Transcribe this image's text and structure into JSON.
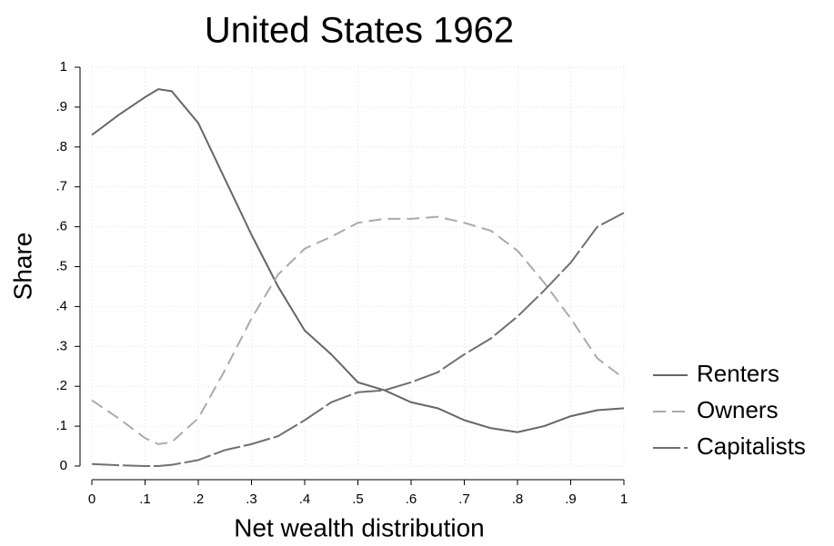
{
  "chart_data": {
    "type": "line",
    "title": "United States 1962",
    "x_label": "Net wealth distribution",
    "y_label": "Share",
    "x": [
      0,
      0.05,
      0.1,
      0.125,
      0.15,
      0.2,
      0.25,
      0.3,
      0.35,
      0.4,
      0.45,
      0.5,
      0.55,
      0.6,
      0.65,
      0.7,
      0.75,
      0.8,
      0.85,
      0.9,
      0.95,
      1
    ],
    "series": [
      {
        "name": "Renters",
        "color": "#666666",
        "dash": "solid",
        "values": [
          0.83,
          0.88,
          0.925,
          0.945,
          0.94,
          0.86,
          0.72,
          0.58,
          0.45,
          0.34,
          0.28,
          0.21,
          0.19,
          0.16,
          0.145,
          0.115,
          0.095,
          0.085,
          0.1,
          0.125,
          0.14,
          0.145
        ]
      },
      {
        "name": "Owners",
        "color": "#aaaaaa",
        "dash": "dashed",
        "values": [
          0.165,
          0.12,
          0.07,
          0.055,
          0.06,
          0.12,
          0.24,
          0.37,
          0.48,
          0.545,
          0.575,
          0.61,
          0.62,
          0.62,
          0.625,
          0.61,
          0.59,
          0.54,
          0.46,
          0.37,
          0.27,
          0.22
        ]
      },
      {
        "name": "Capitalists",
        "color": "#707070",
        "dash": "longdash",
        "values": [
          0.005,
          0.002,
          0,
          0,
          0.003,
          0.015,
          0.04,
          0.055,
          0.075,
          0.115,
          0.16,
          0.185,
          0.19,
          0.21,
          0.235,
          0.28,
          0.32,
          0.375,
          0.44,
          0.51,
          0.6,
          0.635
        ]
      }
    ],
    "xlim": [
      0,
      1
    ],
    "xticks": [
      0,
      {
        "value": 0.1,
        "label": ".1"
      },
      {
        "value": 0.2,
        "label": ".2"
      },
      {
        "value": 0.3,
        "label": ".3"
      },
      {
        "value": 0.4,
        "label": ".4"
      },
      {
        "value": 0.5,
        "label": ".5"
      },
      {
        "value": 0.6,
        "label": ".6"
      },
      {
        "value": 0.7,
        "label": ".7"
      },
      {
        "value": 0.8,
        "label": ".8"
      },
      {
        "value": 0.9,
        "label": ".9"
      },
      1
    ],
    "ylim": [
      0,
      1
    ],
    "yticks": [
      0,
      {
        "value": 0.1,
        "label": ".1"
      },
      {
        "value": 0.2,
        "label": ".2"
      },
      {
        "value": 0.3,
        "label": ".3"
      },
      {
        "value": 0.4,
        "label": ".4"
      },
      {
        "value": 0.5,
        "label": ".5"
      },
      {
        "value": 0.6,
        "label": ".6"
      },
      {
        "value": 0.7,
        "label": ".7"
      },
      {
        "value": 0.8,
        "label": ".8"
      },
      {
        "value": 0.9,
        "label": ".9"
      },
      1
    ],
    "grid": true,
    "legend": "right"
  }
}
